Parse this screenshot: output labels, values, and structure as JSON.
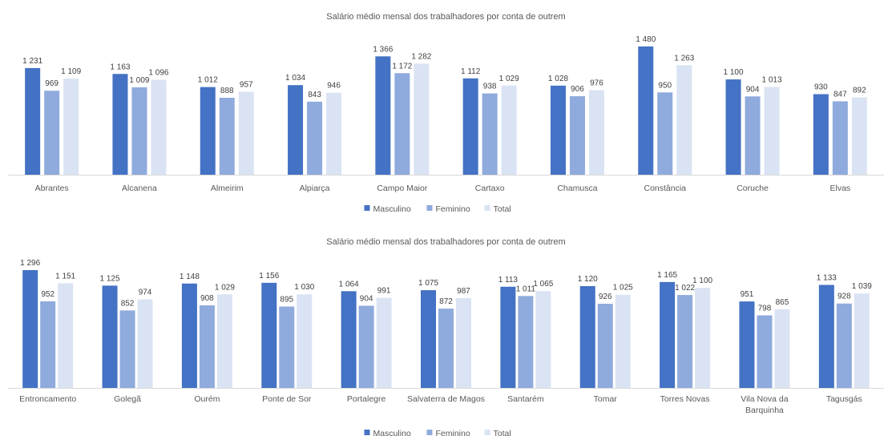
{
  "series_colors": {
    "Masculino": "#4472c4",
    "Feminino": "#8faadc",
    "Total": "#dae3f3"
  },
  "chart_data": [
    {
      "type": "bar",
      "title": "Salário médio mensal dos trabalhadores por conta de outrem",
      "categories": [
        "Abrantes",
        "Alcanena",
        "Almeirim",
        "Alpiarça",
        "Campo Maior",
        "Cartaxo",
        "Chamusca",
        "Constância",
        "Coruche",
        "Elvas"
      ],
      "series": [
        {
          "name": "Masculino",
          "values": [
            1231,
            1163,
            1012,
            1034,
            1366,
            1112,
            1028,
            1480,
            1100,
            930
          ],
          "labels": [
            "1 231",
            "1 163",
            "1 012",
            "1 034",
            "1 366",
            "1 112",
            "1 028",
            "1 480",
            "1 100",
            "930"
          ]
        },
        {
          "name": "Feminino",
          "values": [
            969,
            1009,
            888,
            843,
            1172,
            938,
            906,
            950,
            904,
            847
          ],
          "labels": [
            "969",
            "1 009",
            "888",
            "843",
            "1 172",
            "938",
            "906",
            "950",
            "904",
            "847"
          ]
        },
        {
          "name": "Total",
          "values": [
            1109,
            1096,
            957,
            946,
            1282,
            1029,
            976,
            1263,
            1013,
            892
          ],
          "labels": [
            "1 109",
            "1 096",
            "957",
            "946",
            "1 282",
            "1 029",
            "976",
            "1 263",
            "1 013",
            "892"
          ]
        }
      ],
      "ylim": [
        0,
        1480
      ],
      "legend": "bottom",
      "grid": false
    },
    {
      "type": "bar",
      "title": "Salário médio mensal dos trabalhadores por conta de outrem",
      "categories": [
        "Entroncamento",
        "Golegã",
        "Ourém",
        "Ponte de Sor",
        "Portalegre",
        "Salvaterra de Magos",
        "Santarém",
        "Tomar",
        "Torres Novas",
        "Vila Nova da Barquinha",
        "Tagusgás"
      ],
      "series": [
        {
          "name": "Masculino",
          "values": [
            1296,
            1125,
            1148,
            1156,
            1064,
            1075,
            1113,
            1120,
            1165,
            951,
            1133
          ],
          "labels": [
            "1 296",
            "1 125",
            "1 148",
            "1 156",
            "1 064",
            "1 075",
            "1 113",
            "1 120",
            "1 165",
            "951",
            "1 133"
          ]
        },
        {
          "name": "Feminino",
          "values": [
            952,
            852,
            908,
            895,
            904,
            872,
            1011,
            926,
            1022,
            798,
            928
          ],
          "labels": [
            "952",
            "852",
            "908",
            "895",
            "904",
            "872",
            "1 011",
            "926",
            "1 022",
            "798",
            "928"
          ]
        },
        {
          "name": "Total",
          "values": [
            1151,
            974,
            1029,
            1030,
            991,
            987,
            1065,
            1025,
            1100,
            865,
            1039
          ],
          "labels": [
            "1 151",
            "974",
            "1 029",
            "1 030",
            "991",
            "987",
            "1 065",
            "1 025",
            "1 100",
            "865",
            "1 039"
          ]
        }
      ],
      "ylim": [
        0,
        1296
      ],
      "legend": "bottom",
      "grid": false
    }
  ]
}
